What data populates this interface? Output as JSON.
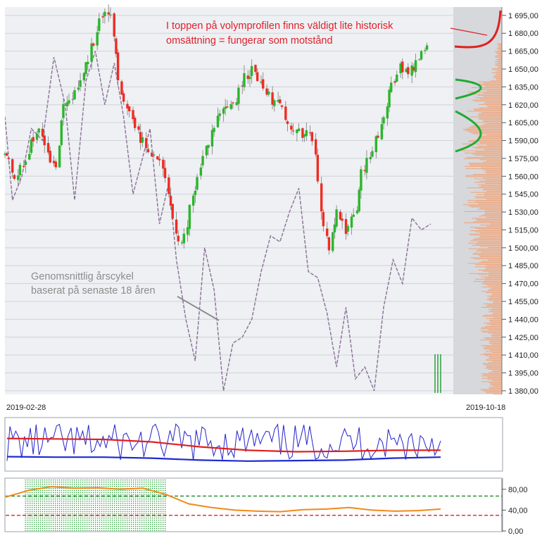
{
  "chart_data": [
    {
      "type": "candlestick",
      "title": "",
      "x_range": [
        "2019-02-28",
        "2019-10-18"
      ],
      "x_tick_labels": [
        "2019-02-28",
        "2019-10-18"
      ],
      "y_range": [
        1377,
        1702
      ],
      "y_tick_labels": [
        "1 695,00",
        "1 680,00",
        "1 665,00",
        "1 650,00",
        "1 635,00",
        "1 620,00",
        "1 605,00",
        "1 590,00",
        "1 575,00",
        "1 560,00",
        "1 545,00",
        "1 530,00",
        "1 515,00",
        "1 500,00",
        "1 485,00",
        "1 470,00",
        "1 455,00",
        "1 440,00",
        "1 425,00",
        "1 410,00",
        "1 395,00",
        "1 380,00"
      ],
      "close_path": [
        [
          "2019-02-28",
          1580
        ],
        [
          "2019-03-06",
          1562
        ],
        [
          "2019-03-12",
          1577
        ],
        [
          "2019-03-18",
          1600
        ],
        [
          "2019-03-22",
          1585
        ],
        [
          "2019-03-27",
          1565
        ],
        [
          "2019-04-01",
          1620
        ],
        [
          "2019-04-05",
          1625
        ],
        [
          "2019-04-10",
          1640
        ],
        [
          "2019-04-14",
          1660
        ],
        [
          "2019-04-18",
          1680
        ],
        [
          "2019-04-22",
          1700
        ],
        [
          "2019-04-26",
          1690
        ],
        [
          "2019-05-01",
          1630
        ],
        [
          "2019-05-06",
          1612
        ],
        [
          "2019-05-10",
          1595
        ],
        [
          "2019-05-15",
          1585
        ],
        [
          "2019-05-20",
          1575
        ],
        [
          "2019-05-24",
          1565
        ],
        [
          "2019-05-29",
          1520
        ],
        [
          "2019-06-03",
          1502
        ],
        [
          "2019-06-08",
          1545
        ],
        [
          "2019-06-13",
          1570
        ],
        [
          "2019-06-18",
          1595
        ],
        [
          "2019-06-22",
          1612
        ],
        [
          "2019-06-27",
          1620
        ],
        [
          "2019-07-02",
          1628
        ],
        [
          "2019-07-06",
          1645
        ],
        [
          "2019-07-10",
          1650
        ],
        [
          "2019-07-15",
          1640
        ],
        [
          "2019-07-20",
          1625
        ],
        [
          "2019-07-25",
          1617
        ],
        [
          "2019-07-30",
          1600
        ],
        [
          "2019-08-04",
          1595
        ],
        [
          "2019-08-08",
          1600
        ],
        [
          "2019-08-12",
          1580
        ],
        [
          "2019-08-16",
          1520
        ],
        [
          "2019-08-20",
          1500
        ],
        [
          "2019-08-24",
          1535
        ],
        [
          "2019-08-28",
          1515
        ],
        [
          "2019-09-02",
          1525
        ],
        [
          "2019-09-06",
          1562
        ],
        [
          "2019-09-11",
          1580
        ],
        [
          "2019-09-16",
          1600
        ],
        [
          "2019-09-21",
          1635
        ],
        [
          "2019-09-26",
          1650
        ],
        [
          "2019-10-01",
          1645
        ],
        [
          "2019-10-06",
          1660
        ],
        [
          "2019-10-12",
          1667
        ]
      ],
      "series": [
        {
          "name": "",
          "style": "dashed",
          "points": [
            [
              "2019-02-28",
              1610
            ],
            [
              "2019-03-04",
              1540
            ],
            [
              "2019-03-09",
              1560
            ],
            [
              "2019-03-14",
              1600
            ],
            [
              "2019-03-20",
              1590
            ],
            [
              "2019-03-26",
              1660
            ],
            [
              "2019-04-01",
              1620
            ],
            [
              "2019-04-06",
              1540
            ],
            [
              "2019-04-12",
              1640
            ],
            [
              "2019-04-17",
              1665
            ],
            [
              "2019-04-22",
              1620
            ],
            [
              "2019-04-27",
              1655
            ],
            [
              "2019-05-02",
              1610
            ],
            [
              "2019-05-07",
              1545
            ],
            [
              "2019-05-12",
              1575
            ],
            [
              "2019-05-16",
              1600
            ],
            [
              "2019-05-21",
              1520
            ],
            [
              "2019-05-26",
              1555
            ],
            [
              "2019-05-30",
              1490
            ],
            [
              "2019-06-04",
              1440
            ],
            [
              "2019-06-09",
              1405
            ],
            [
              "2019-06-14",
              1500
            ],
            [
              "2019-06-19",
              1465
            ],
            [
              "2019-06-24",
              1380
            ],
            [
              "2019-06-29",
              1420
            ],
            [
              "2019-07-04",
              1425
            ],
            [
              "2019-07-09",
              1440
            ],
            [
              "2019-07-14",
              1480
            ],
            [
              "2019-07-19",
              1510
            ],
            [
              "2019-07-24",
              1505
            ],
            [
              "2019-07-29",
              1530
            ],
            [
              "2019-08-03",
              1550
            ],
            [
              "2019-08-08",
              1480
            ],
            [
              "2019-08-13",
              1475
            ],
            [
              "2019-08-18",
              1445
            ],
            [
              "2019-08-23",
              1400
            ],
            [
              "2019-08-28",
              1450
            ],
            [
              "2019-09-02",
              1390
            ],
            [
              "2019-09-07",
              1400
            ],
            [
              "2019-09-12",
              1380
            ],
            [
              "2019-09-17",
              1450
            ],
            [
              "2019-09-22",
              1490
            ],
            [
              "2019-09-27",
              1470
            ],
            [
              "2019-10-02",
              1525
            ],
            [
              "2019-10-07",
              1515
            ],
            [
              "2019-10-12",
              1520
            ]
          ]
        }
      ],
      "annotations": [
        {
          "lines": [
            "I toppen på volymprofilen finns väldigt lite historisk",
            "omsättning = fungerar som motstånd"
          ]
        },
        {
          "lines": [
            "Genomsnittlig årscykel",
            "baserat på senaste 18 åren"
          ]
        }
      ],
      "colors": {
        "up": "#2bb52b",
        "down": "#ee2c22",
        "cycle": "#8a6f96",
        "volume_profile": "#f4a070",
        "resistance_mark": "#e02020",
        "support_mark": "#22aa33"
      },
      "volume_profile": true,
      "grid": true
    },
    {
      "type": "line",
      "title": "",
      "series": [
        {
          "name": "",
          "color": "#2222cc",
          "style": "oscillator"
        },
        {
          "name": "",
          "color": "#e02020",
          "values": [
            0.62,
            0.61,
            0.6,
            0.55,
            0.45,
            0.38,
            0.35,
            0.36,
            0.38,
            0.38
          ]
        },
        {
          "name": "",
          "color": "#1d2ad0",
          "values": [
            0.25,
            0.24,
            0.24,
            0.22,
            0.18,
            0.16,
            0.17,
            0.18,
            0.22,
            0.24
          ]
        }
      ]
    },
    {
      "type": "line",
      "title": "",
      "ylim": [
        0,
        100
      ],
      "y_tick_labels": [
        "80,00",
        "40,00",
        "0,00"
      ],
      "reference_lines": [
        67,
        30
      ],
      "series": [
        {
          "name": "",
          "color": "#f08a18",
          "values": [
            65,
            78,
            85,
            82,
            83,
            80,
            82,
            70,
            52,
            45,
            40,
            38,
            37,
            41,
            42,
            45,
            40,
            38,
            39,
            42
          ]
        }
      ]
    }
  ]
}
